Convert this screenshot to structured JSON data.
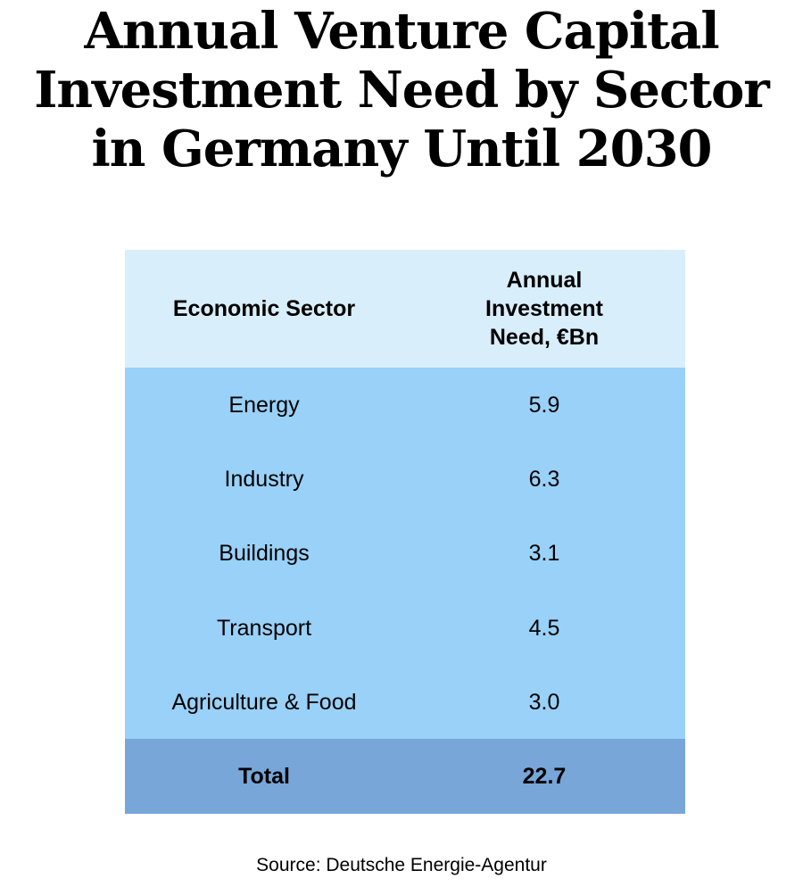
{
  "chart_data": {
    "type": "table",
    "title": "Annual Venture Capital Investment Need by Sector in Germany Until 2030",
    "columns": [
      "Economic Sector",
      "Annual Investment Need, €Bn"
    ],
    "rows": [
      {
        "sector": "Energy",
        "value": "5.9"
      },
      {
        "sector": "Industry",
        "value": "6.3"
      },
      {
        "sector": "Buildings",
        "value": "3.1"
      },
      {
        "sector": "Transport",
        "value": "4.5"
      },
      {
        "sector": "Agriculture & Food",
        "value": "3.0"
      }
    ],
    "total": {
      "label": "Total",
      "value": "22.7"
    },
    "source": "Source: Deutsche Energie-Agentur",
    "colors": {
      "header": "#d8eefa",
      "body": "#99d1f8",
      "total": "#78a6d8"
    }
  }
}
